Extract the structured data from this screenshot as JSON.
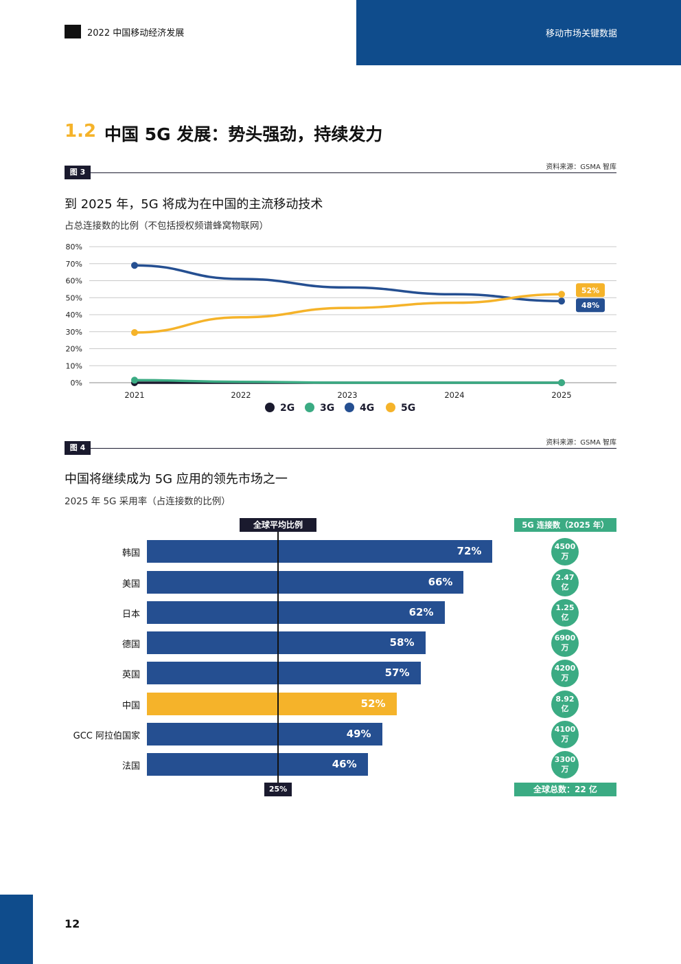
{
  "header": {
    "doc_title": "2022 中国移动经济发展",
    "section_label": "移动市场关键数据",
    "logo_icon": "report-logo-icon"
  },
  "section": {
    "number": "1.2",
    "title": "中国 5G 发展：势头强劲，持续发力"
  },
  "figure3": {
    "tag": "图 3",
    "source": "资料来源：GSMA 智库",
    "title": "到 2025 年，5G 将成为在中国的主流移动技术",
    "subtitle": "占总连接数的比例（不包括授权频谱蜂窝物联网）"
  },
  "figure4": {
    "tag": "图 4",
    "source": "资料来源：GSMA 智库",
    "title": "中国将继续成为 5G 应用的领先市场之一",
    "subtitle": "2025 年 5G 采用率（占连接数的比例）",
    "avg_label": "全球平均比例",
    "avg_value": "25%",
    "conn_header": "5G 连接数（2025 年）",
    "conn_total": "全球总数：22 亿",
    "rows": [
      {
        "country": "韩国",
        "value_label": "72%",
        "conn_num": "4500",
        "conn_unit": "万"
      },
      {
        "country": "美国",
        "value_label": "66%",
        "conn_num": "2.47",
        "conn_unit": "亿"
      },
      {
        "country": "日本",
        "value_label": "62%",
        "conn_num": "1.25",
        "conn_unit": "亿"
      },
      {
        "country": "德国",
        "value_label": "58%",
        "conn_num": "6900",
        "conn_unit": "万"
      },
      {
        "country": "英国",
        "value_label": "57%",
        "conn_num": "4200",
        "conn_unit": "万"
      },
      {
        "country": "中国",
        "value_label": "52%",
        "conn_num": "8.92",
        "conn_unit": "亿"
      },
      {
        "country": "GCC 阿拉伯国家",
        "value_label": "49%",
        "conn_num": "4100",
        "conn_unit": "万"
      },
      {
        "country": "法国",
        "value_label": "46%",
        "conn_num": "3300",
        "conn_unit": "万"
      }
    ]
  },
  "page_number": "12",
  "colors": {
    "brand_blue": "#0f4c8c",
    "bar_blue": "#254f91",
    "highlight_yellow": "#f5b32a",
    "green": "#3bab83",
    "dark": "#1a1a2e"
  },
  "chart_data": [
    {
      "type": "line",
      "x": [
        "2021",
        "2022",
        "2023",
        "2024",
        "2025"
      ],
      "ylim": [
        0,
        80
      ],
      "y_ticks": [
        "0%",
        "10%",
        "20%",
        "30%",
        "40%",
        "50%",
        "60%",
        "70%",
        "80%"
      ],
      "grid": true,
      "legend_position": "bottom",
      "series": [
        {
          "name": "2G",
          "color": "#1a1a2e",
          "values": [
            0,
            0,
            0,
            0,
            0
          ]
        },
        {
          "name": "3G",
          "color": "#3bab83",
          "values": [
            1.5,
            0.5,
            0,
            0,
            0
          ]
        },
        {
          "name": "4G",
          "color": "#254f91",
          "values": [
            69,
            61,
            56,
            52,
            48
          ],
          "end_label": "48%"
        },
        {
          "name": "5G",
          "color": "#f5b32a",
          "values": [
            29.5,
            38.5,
            44,
            47,
            52
          ],
          "end_label": "52%"
        }
      ]
    },
    {
      "type": "bar",
      "orientation": "horizontal",
      "categories": [
        "韩国",
        "美国",
        "日本",
        "德国",
        "英国",
        "中国",
        "GCC 阿拉伯国家",
        "法国"
      ],
      "values": [
        72,
        66,
        62,
        58,
        57,
        52,
        49,
        46
      ],
      "highlight": "中国",
      "reference_line": 25,
      "xlim": [
        0,
        80
      ]
    }
  ]
}
